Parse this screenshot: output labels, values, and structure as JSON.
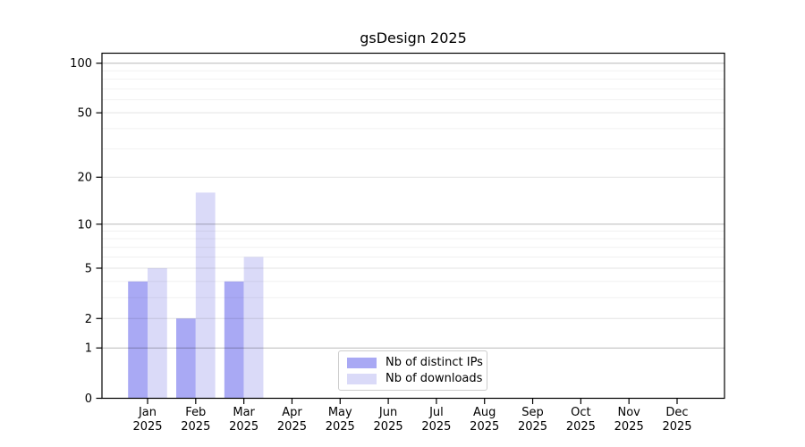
{
  "chart_data": {
    "type": "bar",
    "title": "gsDesign 2025",
    "categories": [
      "Jan",
      "Feb",
      "Mar",
      "Apr",
      "May",
      "Jun",
      "Jul",
      "Aug",
      "Sep",
      "Oct",
      "Nov",
      "Dec"
    ],
    "year": "2025",
    "series": [
      {
        "name": "Nb of distinct IPs",
        "color": "#a9a9f4",
        "values": [
          4,
          2,
          4,
          0,
          0,
          0,
          0,
          0,
          0,
          0,
          0,
          0
        ]
      },
      {
        "name": "Nb of downloads",
        "color": "#dadaf8",
        "values": [
          5,
          16,
          6,
          0,
          0,
          0,
          0,
          0,
          0,
          0,
          0,
          0
        ]
      }
    ],
    "y_ticks": [
      0,
      1,
      2,
      5,
      10,
      20,
      50,
      100
    ],
    "y_scale": "log10(1+y)",
    "ylim": [
      0,
      115
    ],
    "xlabel": "",
    "ylabel": "",
    "grid": true,
    "grid_over_bars": true,
    "legend_position": "lower center"
  }
}
